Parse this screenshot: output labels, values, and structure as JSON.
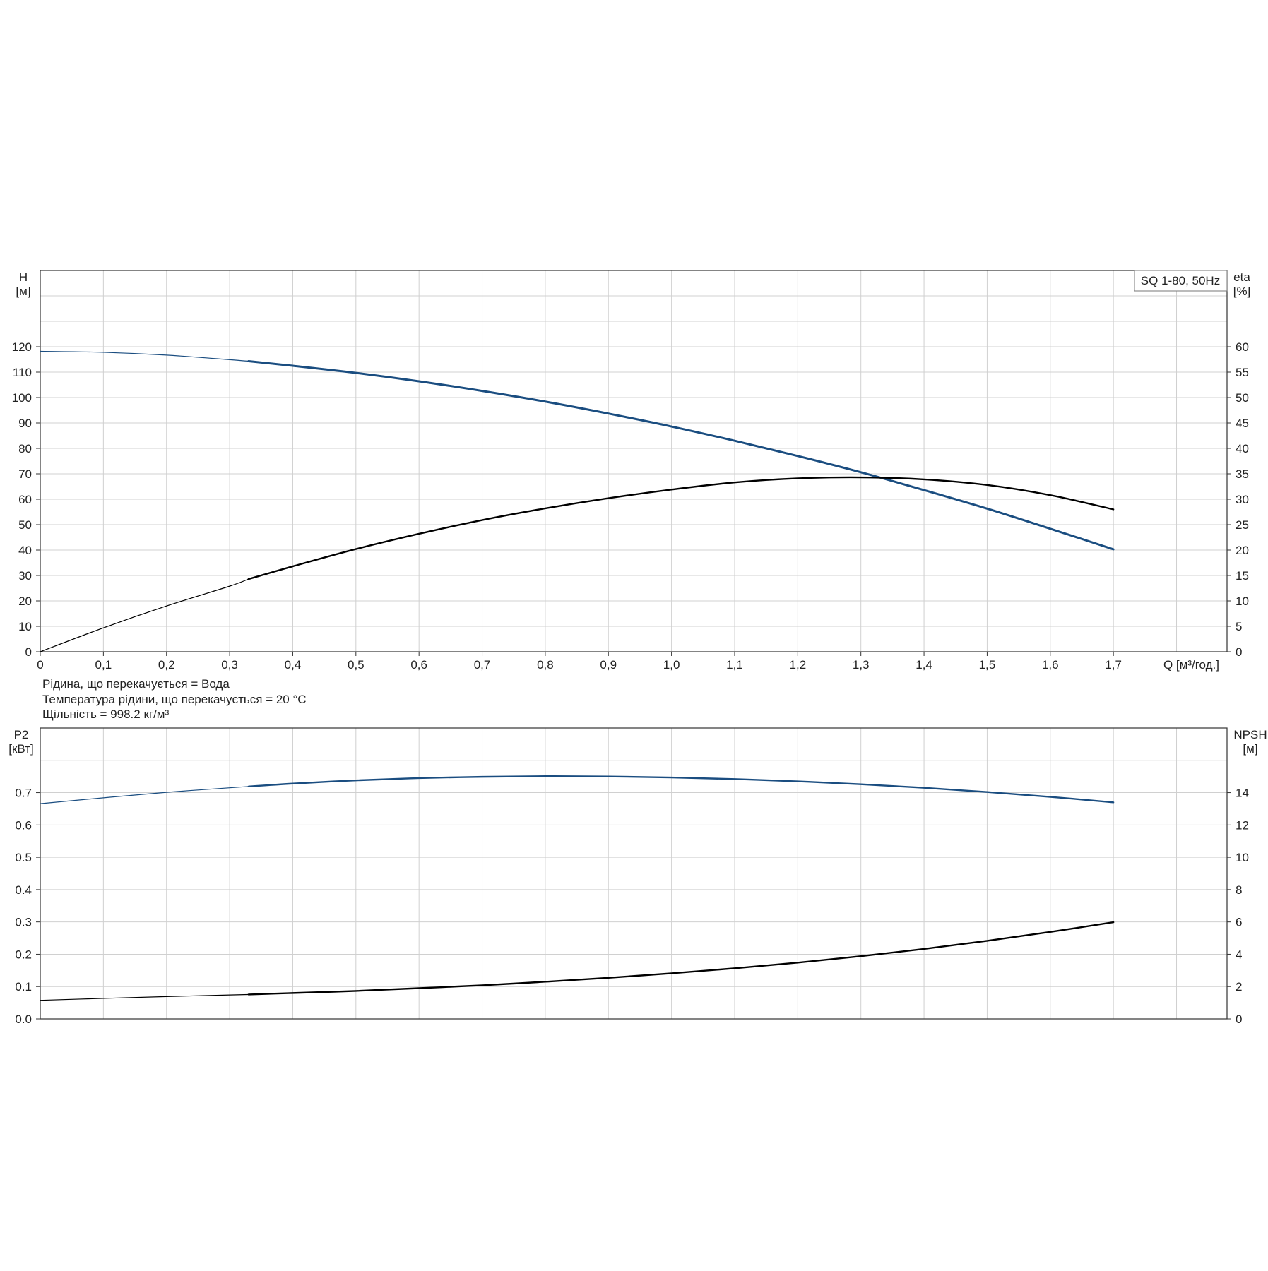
{
  "chart_data": [
    {
      "id": "upper",
      "type": "line",
      "title": "SQ 1-80, 50Hz",
      "x_axis": {
        "label": "Q [м³/год.]",
        "range": [
          0,
          1.88
        ],
        "ticks": [
          0,
          0.1,
          0.2,
          0.3,
          0.4,
          0.5,
          0.6,
          0.7,
          0.8,
          0.9,
          1.0,
          1.1,
          1.2,
          1.3,
          1.4,
          1.5,
          1.6,
          1.7
        ],
        "tick_labels": [
          "0",
          "0,1",
          "0,2",
          "0,3",
          "0,4",
          "0,5",
          "0,6",
          "0,7",
          "0,8",
          "0,9",
          "1,0",
          "1,1",
          "1,2",
          "1,3",
          "1,4",
          "1,5",
          "1,6",
          "1,7"
        ]
      },
      "y_left": {
        "label_line1": "H",
        "label_line2": "[м]",
        "range": [
          0,
          150
        ],
        "ticks": [
          0,
          10,
          20,
          30,
          40,
          50,
          60,
          70,
          80,
          90,
          100,
          110,
          120
        ],
        "tick_labels": [
          "0",
          "10",
          "20",
          "30",
          "40",
          "50",
          "60",
          "70",
          "80",
          "90",
          "100",
          "110",
          "120"
        ],
        "grid": [
          0,
          10,
          20,
          30,
          40,
          50,
          60,
          70,
          80,
          90,
          100,
          110,
          120,
          130,
          140,
          150
        ]
      },
      "y_right": {
        "label_line1": "eta",
        "label_line2": "[%]",
        "range": [
          0,
          75
        ],
        "ticks": [
          0,
          5,
          10,
          15,
          20,
          25,
          30,
          35,
          40,
          45,
          50,
          55,
          60
        ],
        "tick_labels": [
          "0",
          "5",
          "10",
          "15",
          "20",
          "25",
          "30",
          "35",
          "40",
          "45",
          "50",
          "55",
          "60"
        ]
      },
      "grid": true,
      "series": [
        {
          "key": "H",
          "axis": "left",
          "color": "#1a4d80",
          "thin_until": 0.33,
          "x": [
            0,
            0.1,
            0.2,
            0.3,
            0.33,
            0.4,
            0.5,
            0.6,
            0.7,
            0.8,
            0.9,
            1.0,
            1.1,
            1.2,
            1.3,
            1.4,
            1.5,
            1.6,
            1.7
          ],
          "y": [
            118.2,
            117.8,
            116.7,
            114.9,
            114.3,
            112.5,
            109.7,
            106.4,
            102.6,
            98.4,
            93.7,
            88.6,
            83.0,
            77.0,
            70.6,
            63.6,
            56.3,
            48.4,
            40.3
          ]
        },
        {
          "key": "eta",
          "axis": "right",
          "color": "#000000",
          "thin_until": 0.33,
          "x": [
            0,
            0.1,
            0.2,
            0.3,
            0.33,
            0.4,
            0.5,
            0.6,
            0.7,
            0.8,
            0.9,
            1.0,
            1.1,
            1.2,
            1.3,
            1.4,
            1.5,
            1.6,
            1.7
          ],
          "y": [
            0,
            4.7,
            9.0,
            12.9,
            14.3,
            16.8,
            20.2,
            23.2,
            25.9,
            28.2,
            30.2,
            31.9,
            33.3,
            34.1,
            34.3,
            33.9,
            32.8,
            30.8,
            28.0
          ]
        }
      ]
    },
    {
      "id": "lower",
      "type": "line",
      "title": "",
      "x_axis": {
        "label": "",
        "range": [
          0,
          1.88
        ],
        "ticks": [
          0,
          0.1,
          0.2,
          0.3,
          0.4,
          0.5,
          0.6,
          0.7,
          0.8,
          0.9,
          1.0,
          1.1,
          1.2,
          1.3,
          1.4,
          1.5,
          1.6,
          1.7
        ],
        "tick_labels": []
      },
      "y_left": {
        "label_line1": "P2",
        "label_line2": "[кВт]",
        "range": [
          0,
          0.9
        ],
        "ticks": [
          0,
          0.1,
          0.2,
          0.3,
          0.4,
          0.5,
          0.6,
          0.7
        ],
        "tick_labels": [
          "0.0",
          "0.1",
          "0.2",
          "0.3",
          "0.4",
          "0.5",
          "0.6",
          "0.7"
        ],
        "grid": [
          0,
          0.1,
          0.2,
          0.3,
          0.4,
          0.5,
          0.6,
          0.7,
          0.8,
          0.9
        ]
      },
      "y_right": {
        "label_line1": "NPSH",
        "label_line2": "[м]",
        "range": [
          0,
          18
        ],
        "ticks": [
          0,
          2,
          4,
          6,
          8,
          10,
          12,
          14
        ],
        "tick_labels": [
          "0",
          "2",
          "4",
          "6",
          "8",
          "10",
          "12",
          "14"
        ]
      },
      "grid": true,
      "series": [
        {
          "key": "P2",
          "axis": "left",
          "color": "#1a4d80",
          "thin_until": 0.33,
          "x": [
            0,
            0.1,
            0.2,
            0.3,
            0.33,
            0.4,
            0.5,
            0.6,
            0.7,
            0.8,
            0.9,
            1.0,
            1.1,
            1.2,
            1.3,
            1.4,
            1.5,
            1.6,
            1.7
          ],
          "y": [
            0.666,
            0.684,
            0.701,
            0.715,
            0.719,
            0.728,
            0.738,
            0.745,
            0.749,
            0.751,
            0.75,
            0.747,
            0.742,
            0.735,
            0.726,
            0.715,
            0.702,
            0.687,
            0.67
          ]
        },
        {
          "key": "NPSH",
          "axis": "right",
          "color": "#000000",
          "thin_until": 0.33,
          "x": [
            0,
            0.1,
            0.2,
            0.3,
            0.33,
            0.4,
            0.5,
            0.6,
            0.7,
            0.8,
            0.9,
            1.0,
            1.1,
            1.2,
            1.3,
            1.4,
            1.5,
            1.6,
            1.7
          ],
          "y": [
            1.15,
            1.27,
            1.38,
            1.48,
            1.51,
            1.6,
            1.73,
            1.9,
            2.08,
            2.3,
            2.54,
            2.82,
            3.13,
            3.48,
            3.88,
            4.33,
            4.83,
            5.38,
            5.98
          ]
        }
      ]
    }
  ],
  "notes": [
    "Рідина, що перекачується = Вода",
    "Температура рідини, що перекачується = 20 °C",
    "Щільність = 998.2 кг/м³"
  ]
}
